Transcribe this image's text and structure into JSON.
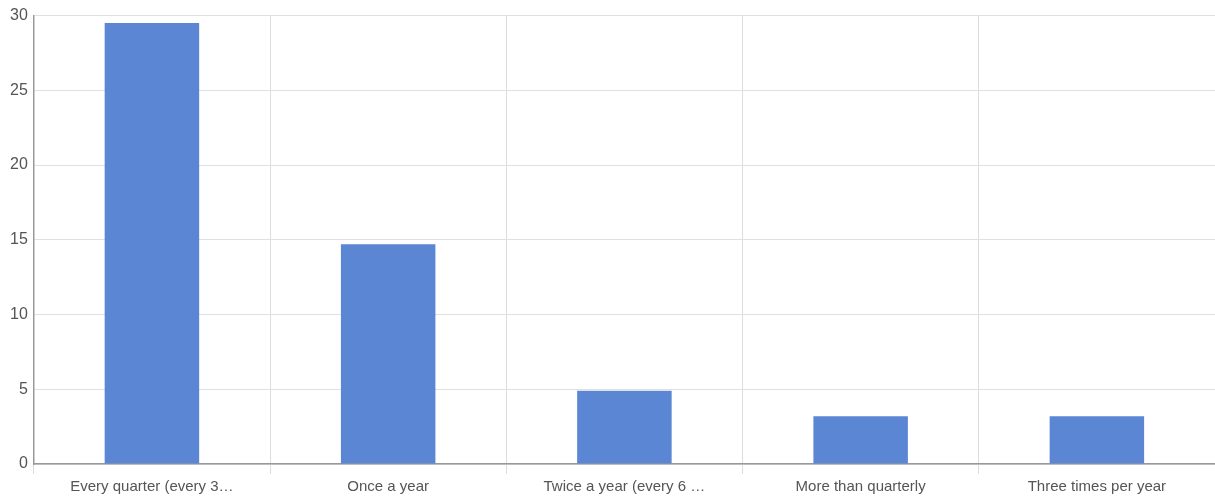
{
  "chart_data": {
    "type": "bar",
    "categories": [
      "Every quarter (every 3…",
      "Once a year",
      "Twice a year (every 6 …",
      "More than quarterly",
      "Three times per year"
    ],
    "values": [
      29.5,
      14.7,
      4.9,
      3.2,
      3.2
    ],
    "color": "#5b86d4",
    "ylim": [
      0,
      30
    ],
    "yticks": [
      0,
      5,
      10,
      15,
      20,
      25,
      30
    ],
    "grid": true
  }
}
